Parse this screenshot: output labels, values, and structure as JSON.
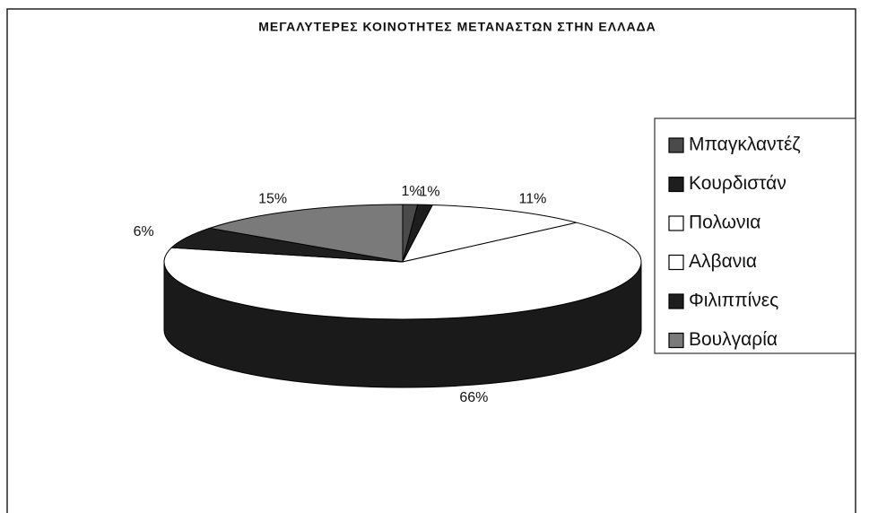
{
  "chart_data": {
    "type": "pie",
    "title": "ΜΕΓΑΛΥΤΕΡΕΣ ΚΟΙΝΟΤΗΤΕΣ ΜΕΤΑΝΑΣΤΩΝ ΣΤΗΝ ΕΛΛΑΔΑ",
    "categories": [
      "Μπαγκλαντέζ",
      "Κουρδιστάν",
      "Πολωνια",
      "Αλβανια",
      "Φιλιππίνες",
      "Βουλγαρία"
    ],
    "values": [
      1,
      1,
      11,
      66,
      6,
      15
    ],
    "value_labels": [
      "1%",
      "1%",
      "11%",
      "66%",
      "6%",
      "15%"
    ],
    "colors": [
      "#4a4a4a",
      "#1e1e1e",
      "#ffffff",
      "#ffffff",
      "#1e1e1e",
      "#7a7a7a"
    ],
    "legend": "right"
  }
}
